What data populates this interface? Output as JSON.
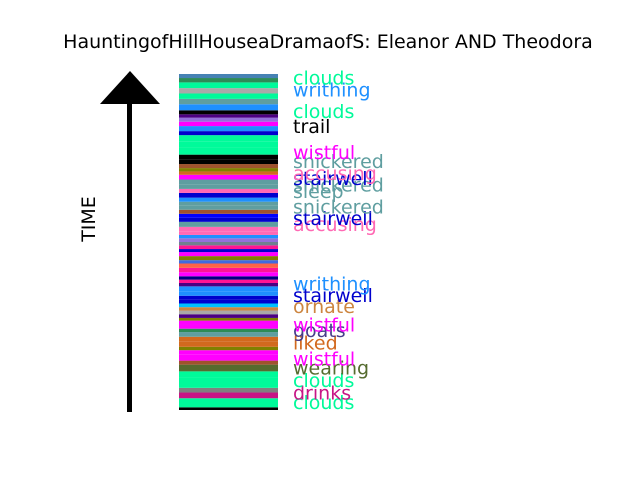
{
  "title": "HauntingofHillHouseaDramaofS: Eleanor AND Theodora",
  "axis_label": "TIME",
  "chart_data": {
    "type": "bar",
    "orientation": "timeline-stack",
    "title": "HauntingofHillHouseaDramaofS: Eleanor AND Theodora",
    "ylabel": "TIME",
    "ylim": [
      0,
      1
    ],
    "stripes": [
      {
        "t0": 0.0,
        "t1": 0.008,
        "color": "#000000"
      },
      {
        "t0": 0.008,
        "t1": 0.035,
        "color": "#00fa9a"
      },
      {
        "t0": 0.035,
        "t1": 0.052,
        "color": "#c71585"
      },
      {
        "t0": 0.052,
        "t1": 0.066,
        "color": "#808080"
      },
      {
        "t0": 0.066,
        "t1": 0.098,
        "color": "#00fa9a"
      },
      {
        "t0": 0.098,
        "t1": 0.115,
        "color": "#00fa9a"
      },
      {
        "t0": 0.115,
        "t1": 0.135,
        "color": "#556b2f"
      },
      {
        "t0": 0.135,
        "t1": 0.147,
        "color": "#a0522d"
      },
      {
        "t0": 0.147,
        "t1": 0.166,
        "color": "#ff00ff"
      },
      {
        "t0": 0.166,
        "t1": 0.178,
        "color": "#ff00ff"
      },
      {
        "t0": 0.178,
        "t1": 0.188,
        "color": "#808000"
      },
      {
        "t0": 0.188,
        "t1": 0.203,
        "color": "#d2691e"
      },
      {
        "t0": 0.203,
        "t1": 0.218,
        "color": "#d2691e"
      },
      {
        "t0": 0.218,
        "t1": 0.232,
        "color": "#5f9ea0"
      },
      {
        "t0": 0.232,
        "t1": 0.242,
        "color": "#2e8b57"
      },
      {
        "t0": 0.242,
        "t1": 0.253,
        "color": "#ff00ff"
      },
      {
        "t0": 0.253,
        "t1": 0.266,
        "color": "#ff00ff"
      },
      {
        "t0": 0.266,
        "t1": 0.274,
        "color": "#808000"
      },
      {
        "t0": 0.274,
        "t1": 0.285,
        "color": "#4b0082"
      },
      {
        "t0": 0.285,
        "t1": 0.296,
        "color": "#a9a9a9"
      },
      {
        "t0": 0.296,
        "t1": 0.306,
        "color": "#cd853f"
      },
      {
        "t0": 0.306,
        "t1": 0.317,
        "color": "#00bfff"
      },
      {
        "t0": 0.317,
        "t1": 0.328,
        "color": "#0000cd"
      },
      {
        "t0": 0.328,
        "t1": 0.34,
        "color": "#0000cd"
      },
      {
        "t0": 0.34,
        "t1": 0.352,
        "color": "#1e90ff"
      },
      {
        "t0": 0.352,
        "t1": 0.368,
        "color": "#1e90ff"
      },
      {
        "t0": 0.368,
        "t1": 0.378,
        "color": "#4b0082"
      },
      {
        "t0": 0.378,
        "t1": 0.388,
        "color": "#ff1493"
      },
      {
        "t0": 0.388,
        "t1": 0.398,
        "color": "#000080"
      },
      {
        "t0": 0.398,
        "t1": 0.41,
        "color": "#ff00ff"
      },
      {
        "t0": 0.41,
        "t1": 0.423,
        "color": "#ff1493"
      },
      {
        "t0": 0.423,
        "t1": 0.436,
        "color": "#ff6347"
      },
      {
        "t0": 0.436,
        "t1": 0.446,
        "color": "#4169e1"
      },
      {
        "t0": 0.446,
        "t1": 0.458,
        "color": "#808000"
      },
      {
        "t0": 0.458,
        "t1": 0.47,
        "color": "#ff00ff"
      },
      {
        "t0": 0.47,
        "t1": 0.479,
        "color": "#0000cd"
      },
      {
        "t0": 0.479,
        "t1": 0.49,
        "color": "#ff1493"
      },
      {
        "t0": 0.49,
        "t1": 0.5,
        "color": "#708090"
      },
      {
        "t0": 0.5,
        "t1": 0.511,
        "color": "#9370db"
      },
      {
        "t0": 0.511,
        "t1": 0.521,
        "color": "#1e90ff"
      },
      {
        "t0": 0.521,
        "t1": 0.532,
        "color": "#ff69b4"
      },
      {
        "t0": 0.532,
        "t1": 0.545,
        "color": "#ff69b4"
      },
      {
        "t0": 0.545,
        "t1": 0.56,
        "color": "#5f9ea0"
      },
      {
        "t0": 0.56,
        "t1": 0.572,
        "color": "#0000cd"
      },
      {
        "t0": 0.572,
        "t1": 0.584,
        "color": "#0000ff"
      },
      {
        "t0": 0.584,
        "t1": 0.596,
        "color": "#a0522d"
      },
      {
        "t0": 0.596,
        "t1": 0.608,
        "color": "#5f9ea0"
      },
      {
        "t0": 0.608,
        "t1": 0.62,
        "color": "#5f9ea0"
      },
      {
        "t0": 0.62,
        "t1": 0.632,
        "color": "#1e90ff"
      },
      {
        "t0": 0.632,
        "t1": 0.646,
        "color": "#0000cd"
      },
      {
        "t0": 0.646,
        "t1": 0.658,
        "color": "#ff69b4"
      },
      {
        "t0": 0.658,
        "t1": 0.672,
        "color": "#5f9ea0"
      },
      {
        "t0": 0.672,
        "t1": 0.686,
        "color": "#5f9ea0"
      },
      {
        "t0": 0.686,
        "t1": 0.7,
        "color": "#ff00ff"
      },
      {
        "t0": 0.7,
        "t1": 0.71,
        "color": "#d2691e"
      },
      {
        "t0": 0.71,
        "t1": 0.72,
        "color": "#808000"
      },
      {
        "t0": 0.72,
        "t1": 0.732,
        "color": "#a0522d"
      },
      {
        "t0": 0.732,
        "t1": 0.745,
        "color": "#000000"
      },
      {
        "t0": 0.745,
        "t1": 0.76,
        "color": "#000000"
      },
      {
        "t0": 0.76,
        "t1": 0.78,
        "color": "#00fa9a"
      },
      {
        "t0": 0.78,
        "t1": 0.8,
        "color": "#00fa9a"
      },
      {
        "t0": 0.8,
        "t1": 0.818,
        "color": "#00fa9a"
      },
      {
        "t0": 0.818,
        "t1": 0.83,
        "color": "#0000cd"
      },
      {
        "t0": 0.83,
        "t1": 0.845,
        "color": "#1e90ff"
      },
      {
        "t0": 0.845,
        "t1": 0.858,
        "color": "#ff00ff"
      },
      {
        "t0": 0.858,
        "t1": 0.87,
        "color": "#9370db"
      },
      {
        "t0": 0.87,
        "t1": 0.88,
        "color": "#4b0082"
      },
      {
        "t0": 0.88,
        "t1": 0.892,
        "color": "#000000"
      },
      {
        "t0": 0.892,
        "t1": 0.91,
        "color": "#1e90ff"
      },
      {
        "t0": 0.91,
        "t1": 0.926,
        "color": "#5f9ea0"
      },
      {
        "t0": 0.926,
        "t1": 0.942,
        "color": "#00fa9a"
      },
      {
        "t0": 0.942,
        "t1": 0.958,
        "color": "#a9a9a9"
      },
      {
        "t0": 0.958,
        "t1": 0.975,
        "color": "#00fa9a"
      },
      {
        "t0": 0.975,
        "t1": 0.988,
        "color": "#2e8b57"
      },
      {
        "t0": 0.988,
        "t1": 1.0,
        "color": "#4682b4"
      }
    ],
    "labels": [
      {
        "text": "clouds",
        "t": 0.024,
        "color": "#00fa9a"
      },
      {
        "text": "drinks",
        "t": 0.052,
        "color": "#c71585"
      },
      {
        "text": "clouds",
        "t": 0.09,
        "color": "#00fa9a"
      },
      {
        "text": "wearing",
        "t": 0.126,
        "color": "#556b2f"
      },
      {
        "text": "wistful",
        "t": 0.153,
        "color": "#ff00ff"
      },
      {
        "text": "liked",
        "t": 0.201,
        "color": "#d2691e"
      },
      {
        "text": "goats",
        "t": 0.238,
        "color": "#483d8b"
      },
      {
        "text": "wistful",
        "t": 0.254,
        "color": "#ff00ff"
      },
      {
        "text": "ornate",
        "t": 0.31,
        "color": "#cd853f"
      },
      {
        "text": "stairwell",
        "t": 0.342,
        "color": "#0000cd"
      },
      {
        "text": "writhing",
        "t": 0.376,
        "color": "#1e90ff"
      },
      {
        "text": "accusing",
        "t": 0.553,
        "color": "#ff69b4"
      },
      {
        "text": "stairwell",
        "t": 0.571,
        "color": "#0000cd"
      },
      {
        "text": "snickered",
        "t": 0.606,
        "color": "#5f9ea0"
      },
      {
        "text": "sleep",
        "t": 0.652,
        "color": "#5f9ea0"
      },
      {
        "text": "snickered",
        "t": 0.671,
        "color": "#5f9ea0"
      },
      {
        "text": "stairwell",
        "t": 0.69,
        "color": "#0000cd"
      },
      {
        "text": "accusing",
        "t": 0.706,
        "color": "#ff69b4"
      },
      {
        "text": "snickered",
        "t": 0.741,
        "color": "#5f9ea0"
      },
      {
        "text": "wistful",
        "t": 0.768,
        "color": "#ff00ff"
      },
      {
        "text": "trail",
        "t": 0.845,
        "color": "#000000"
      },
      {
        "text": "clouds",
        "t": 0.89,
        "color": "#00fa9a"
      },
      {
        "text": "writhing",
        "t": 0.954,
        "color": "#1e90ff"
      },
      {
        "text": "clouds",
        "t": 0.99,
        "color": "#00fa9a"
      }
    ]
  }
}
